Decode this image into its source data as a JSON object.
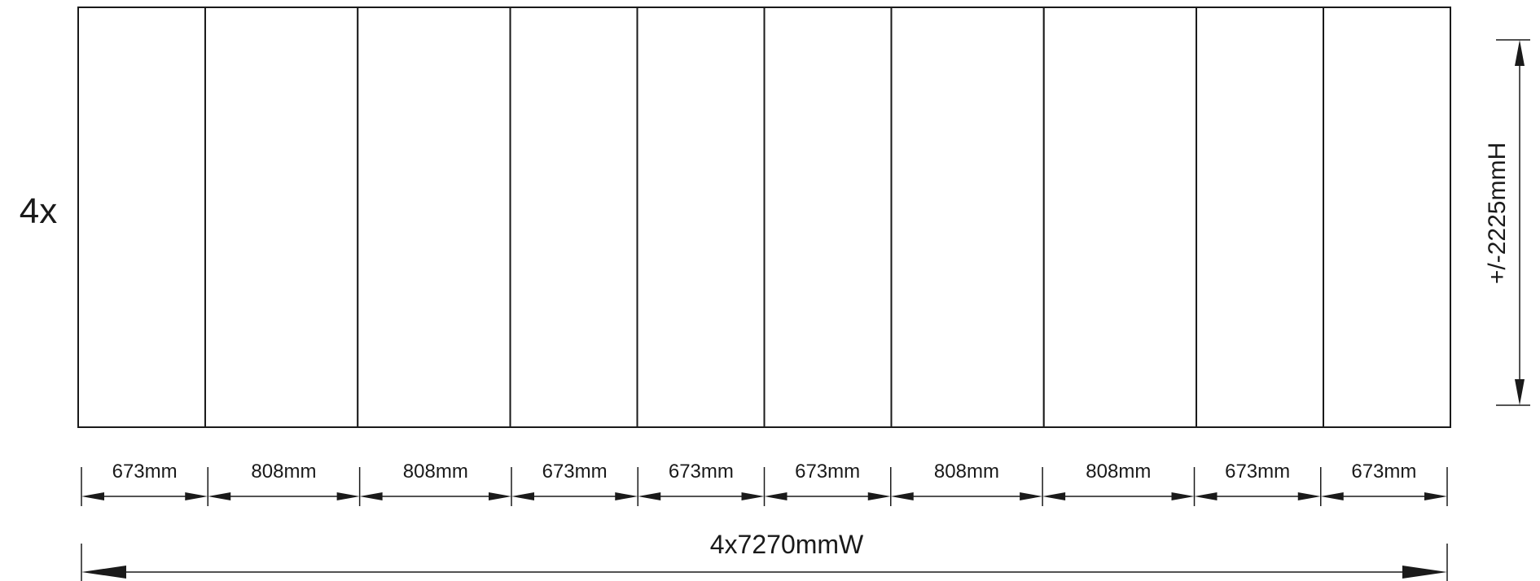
{
  "multiplier_label": "4x",
  "panels": [
    {
      "width_label": "673mm",
      "width_mm": 673
    },
    {
      "width_label": "808mm",
      "width_mm": 808
    },
    {
      "width_label": "808mm",
      "width_mm": 808
    },
    {
      "width_label": "673mm",
      "width_mm": 673
    },
    {
      "width_label": "673mm",
      "width_mm": 673
    },
    {
      "width_label": "673mm",
      "width_mm": 673
    },
    {
      "width_label": "808mm",
      "width_mm": 808
    },
    {
      "width_label": "808mm",
      "width_mm": 808
    },
    {
      "width_label": "673mm",
      "width_mm": 673
    },
    {
      "width_label": "673mm",
      "width_mm": 673
    }
  ],
  "total_width_label": "4x7270mmW",
  "height_label": "+/-2225mmH",
  "colors": {
    "stroke": "#1a1a1a",
    "background": "#ffffff"
  }
}
